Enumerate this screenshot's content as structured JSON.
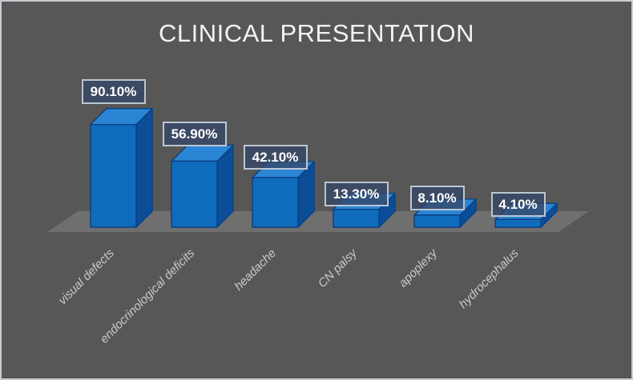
{
  "window": {
    "background_color": "#575757",
    "border_color": "#c6ccd2"
  },
  "chart_data": {
    "type": "bar",
    "variant": "3d-column",
    "title": "CLINICAL PRESENTATION",
    "categories": [
      "visual defects",
      "endocrinological deficits",
      "headache",
      "CN palsy",
      "apoplexy",
      "hydrocephalus"
    ],
    "values": [
      90.1,
      56.9,
      42.1,
      13.3,
      8.1,
      4.1
    ],
    "data_labels": [
      "90.10%",
      "56.90%",
      "42.10%",
      "13.30%",
      "8.10%",
      "4.10%"
    ],
    "unit": "%",
    "legend_position": "none",
    "axes_visible": false,
    "gridlines": false,
    "colors": {
      "bar_front": "#0f6cbd",
      "bar_top": "#2a86d4",
      "bar_side": "#0b4e97",
      "bar_edge": "#0a3f80",
      "floor": "#6f6f6f",
      "label_box_border": "#bcc6d2",
      "label_text": "#ffffff",
      "category_text": "#c9c9c9",
      "title_text": "#f2f2f2"
    }
  }
}
